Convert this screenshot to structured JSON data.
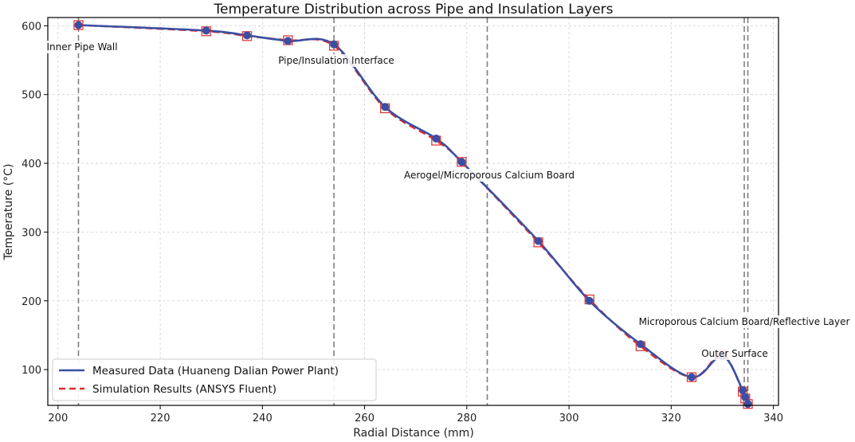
{
  "chart_data": {
    "type": "line",
    "title": "Temperature Distribution across Pipe and Insulation Layers",
    "xlabel": "Radial Distance (mm)",
    "ylabel": "Temperature (°C)",
    "xlim": [
      198,
      341
    ],
    "ylim": [
      48,
      612
    ],
    "xticks": [
      200,
      220,
      240,
      260,
      280,
      300,
      320,
      340
    ],
    "yticks": [
      100,
      200,
      300,
      400,
      500,
      600
    ],
    "grid": true,
    "legend_position": "lower-left",
    "series": [
      {
        "name": "Measured Data (Huaneng Dalian Power Plant)",
        "color": "#3a4fa3",
        "line_style": "solid",
        "marker": "circle",
        "x": [
          204,
          229,
          237,
          245,
          254,
          264,
          274,
          279,
          294,
          304,
          314,
          324,
          330,
          334,
          334.5,
          335
        ],
        "y": [
          601,
          593,
          586,
          578,
          573,
          482,
          436,
          402,
          287,
          200,
          137,
          89,
          120,
          70,
          60,
          50
        ]
      },
      {
        "name": "Simulation Results (ANSYS Fluent)",
        "color": "#e02b2b",
        "line_style": "dashed",
        "marker": "square",
        "x": [
          204,
          229,
          237,
          245,
          254,
          264,
          274,
          279,
          294,
          304,
          314,
          324,
          330,
          334,
          334.5,
          335
        ],
        "y": [
          601,
          592,
          585,
          579,
          571,
          480,
          433,
          402,
          285,
          202,
          134,
          89,
          122,
          68,
          58,
          50
        ]
      }
    ],
    "boundaries": [
      {
        "x": 204,
        "label": "Inner Pipe Wall"
      },
      {
        "x": 254,
        "label": "Pipe/Insulation Interface"
      },
      {
        "x": 284,
        "label": "Aerogel/Microporous Calcium Board"
      },
      {
        "x": 334.3,
        "label": "Microporous Calcium Board/Reflective Layer"
      },
      {
        "x": 335,
        "label": "Outer Surface"
      }
    ]
  }
}
